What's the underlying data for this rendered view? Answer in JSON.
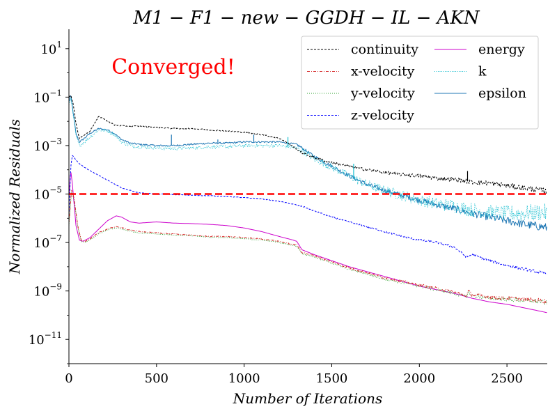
{
  "chart_data": {
    "type": "line",
    "title": "M1 − F1 − new − GGDH − IL − AKN",
    "xlabel": "Number of Iterations",
    "ylabel": "Normalized Residuals",
    "xlim": [
      0,
      2730
    ],
    "ylim_log10": [
      -12,
      1.8
    ],
    "y_scale": "log",
    "grid": false,
    "legend_position": "top-right",
    "x_ticks": [
      0,
      500,
      1000,
      1500,
      2000,
      2500
    ],
    "y_ticks": [
      {
        "exp": 1,
        "label": "10",
        "sup": "1"
      },
      {
        "exp": -1,
        "label": "10",
        "sup": "−1"
      },
      {
        "exp": -3,
        "label": "10",
        "sup": "−3"
      },
      {
        "exp": -5,
        "label": "10",
        "sup": "−5"
      },
      {
        "exp": -7,
        "label": "10",
        "sup": "−7"
      },
      {
        "exp": -9,
        "label": "10",
        "sup": "−9"
      },
      {
        "exp": -11,
        "label": "10",
        "sup": "−11"
      }
    ],
    "annotation": {
      "text": "Converged!",
      "color": "#ff0000"
    },
    "threshold": {
      "value_log10": -5,
      "color": "#ff0000"
    },
    "series": [
      {
        "name": "continuity",
        "color": "#000000",
        "dash": "3,2",
        "noise": 0.04,
        "x": [
          0,
          10,
          25,
          40,
          60,
          80,
          120,
          170,
          200,
          260,
          320,
          400,
          500,
          600,
          700,
          800,
          900,
          1000,
          1100,
          1200,
          1250,
          1300,
          1330,
          1400,
          1500,
          1600,
          1700,
          1800,
          1900,
          2000,
          2100,
          2200,
          2300,
          2400,
          2500,
          2600,
          2700,
          2730
        ],
        "y": [
          -1.0,
          -0.9,
          -1.3,
          -2.1,
          -2.7,
          -2.6,
          -2.4,
          -1.8,
          -1.9,
          -2.15,
          -2.2,
          -2.2,
          -2.25,
          -2.3,
          -2.3,
          -2.35,
          -2.4,
          -2.45,
          -2.55,
          -2.7,
          -2.9,
          -3.15,
          -3.3,
          -3.5,
          -3.7,
          -3.85,
          -4.0,
          -4.1,
          -4.2,
          -4.25,
          -4.35,
          -4.4,
          -4.5,
          -4.55,
          -4.65,
          -4.75,
          -4.85,
          -4.9
        ]
      },
      {
        "name": "x-velocity",
        "color": "#d62728",
        "dash": "4,2,1,2",
        "noise": 0.03,
        "x": [
          0,
          15,
          30,
          50,
          70,
          90,
          120,
          170,
          230,
          280,
          330,
          400,
          500,
          600,
          700,
          800,
          900,
          1000,
          1100,
          1200,
          1260,
          1300,
          1330,
          1400,
          1500,
          1600,
          1700,
          1800,
          1900,
          2000,
          2100,
          2200,
          2270,
          2280,
          2300,
          2400,
          2500,
          2600,
          2700,
          2730
        ],
        "y": [
          -6.2,
          -4.8,
          -5.2,
          -6.3,
          -6.9,
          -6.95,
          -6.85,
          -6.6,
          -6.4,
          -6.35,
          -6.45,
          -6.55,
          -6.6,
          -6.65,
          -6.7,
          -6.75,
          -6.75,
          -6.8,
          -6.85,
          -6.95,
          -7.05,
          -7.1,
          -7.4,
          -7.55,
          -7.8,
          -8.05,
          -8.25,
          -8.45,
          -8.6,
          -8.75,
          -8.9,
          -9.05,
          -9.2,
          -9.0,
          -9.15,
          -9.25,
          -9.3,
          -9.35,
          -9.4,
          -9.45
        ]
      },
      {
        "name": "y-velocity",
        "color": "#2ca02c",
        "dash": "1,2",
        "noise": 0.03,
        "x": [
          0,
          15,
          30,
          50,
          70,
          90,
          120,
          170,
          230,
          280,
          330,
          400,
          500,
          600,
          700,
          800,
          900,
          1000,
          1100,
          1200,
          1260,
          1300,
          1330,
          1400,
          1500,
          1600,
          1700,
          1800,
          1900,
          2000,
          2100,
          2200,
          2270,
          2280,
          2300,
          2400,
          2500,
          2600,
          2700,
          2730
        ],
        "y": [
          -6.3,
          -4.9,
          -5.3,
          -6.35,
          -6.95,
          -7.0,
          -6.9,
          -6.65,
          -6.45,
          -6.4,
          -6.5,
          -6.6,
          -6.65,
          -6.7,
          -6.72,
          -6.78,
          -6.8,
          -6.85,
          -6.9,
          -7.0,
          -7.1,
          -7.15,
          -7.45,
          -7.6,
          -7.85,
          -8.1,
          -8.3,
          -8.5,
          -8.65,
          -8.8,
          -8.95,
          -9.1,
          -9.25,
          -9.05,
          -9.2,
          -9.3,
          -9.35,
          -9.4,
          -9.45,
          -9.5
        ]
      },
      {
        "name": "z-velocity",
        "color": "#0000ff",
        "dash": "3,2",
        "noise": 0.02,
        "x": [
          0,
          10,
          20,
          40,
          60,
          100,
          150,
          200,
          250,
          300,
          400,
          500,
          600,
          700,
          800,
          900,
          1000,
          1100,
          1200,
          1300,
          1350,
          1400,
          1500,
          1600,
          1700,
          1800,
          1900,
          2000,
          2100,
          2200,
          2270,
          2300,
          2400,
          2500,
          2600,
          2700,
          2730
        ],
        "y": [
          -6.0,
          -3.9,
          -3.4,
          -3.6,
          -3.75,
          -3.95,
          -4.15,
          -4.35,
          -4.55,
          -4.75,
          -4.95,
          -5.0,
          -5.02,
          -5.05,
          -5.07,
          -5.1,
          -5.15,
          -5.2,
          -5.3,
          -5.45,
          -5.55,
          -5.7,
          -5.95,
          -6.15,
          -6.35,
          -6.55,
          -6.75,
          -6.9,
          -7.0,
          -7.2,
          -7.6,
          -7.5,
          -7.75,
          -7.95,
          -8.1,
          -8.25,
          -8.3
        ]
      },
      {
        "name": "energy",
        "color": "#cc00cc",
        "dash": "",
        "noise": 0.0,
        "x": [
          0,
          10,
          20,
          40,
          60,
          80,
          120,
          170,
          220,
          270,
          300,
          350,
          400,
          500,
          600,
          700,
          800,
          900,
          1000,
          1100,
          1200,
          1280,
          1300,
          1330,
          1400,
          1500,
          1600,
          1700,
          1800,
          1900,
          2000,
          2100,
          2200,
          2300,
          2400,
          2500,
          2600,
          2700,
          2730
        ],
        "y": [
          -5.2,
          -4.0,
          -4.6,
          -6.3,
          -6.9,
          -6.95,
          -6.8,
          -6.45,
          -6.1,
          -5.9,
          -5.95,
          -6.15,
          -6.2,
          -6.15,
          -6.2,
          -6.22,
          -6.25,
          -6.3,
          -6.4,
          -6.55,
          -6.75,
          -6.9,
          -6.95,
          -7.3,
          -7.5,
          -7.75,
          -8.0,
          -8.2,
          -8.4,
          -8.6,
          -8.8,
          -8.95,
          -9.1,
          -9.3,
          -9.45,
          -9.55,
          -9.7,
          -9.85,
          -9.9
        ]
      },
      {
        "name": "k",
        "color": "#17becf",
        "dash": "1,1.5",
        "noise": 0.12,
        "x": [
          0,
          10,
          20,
          40,
          60,
          80,
          120,
          170,
          220,
          260,
          300,
          350,
          400,
          500,
          600,
          700,
          800,
          900,
          1000,
          1100,
          1200,
          1300,
          1340,
          1400,
          1500,
          1600,
          1700,
          1800,
          1900,
          2000,
          2100,
          2200,
          2300,
          2400,
          2500,
          2600,
          2700,
          2730
        ],
        "y": [
          -1.3,
          -1.0,
          -1.5,
          -2.6,
          -3.0,
          -2.9,
          -2.65,
          -2.35,
          -2.4,
          -2.55,
          -2.85,
          -3.0,
          -3.05,
          -3.1,
          -3.12,
          -3.1,
          -3.05,
          -3.05,
          -3.0,
          -3.0,
          -3.0,
          -3.1,
          -3.25,
          -3.55,
          -3.9,
          -4.25,
          -4.6,
          -4.85,
          -5.05,
          -5.25,
          -5.4,
          -5.5,
          -5.65,
          -5.75,
          -5.8,
          -5.8,
          -5.75,
          -5.8
        ]
      },
      {
        "name": "epsilon",
        "color": "#1f77b4",
        "dash": "",
        "noise": 0.06,
        "x": [
          0,
          10,
          20,
          40,
          60,
          80,
          120,
          170,
          220,
          260,
          300,
          350,
          400,
          500,
          600,
          700,
          800,
          900,
          1000,
          1100,
          1200,
          1300,
          1340,
          1400,
          1500,
          1600,
          1700,
          1800,
          1900,
          2000,
          2100,
          2200,
          2300,
          2400,
          2500,
          2600,
          2700,
          2730
        ],
        "y": [
          -1.2,
          -0.9,
          -1.4,
          -2.5,
          -2.85,
          -2.75,
          -2.5,
          -2.3,
          -2.35,
          -2.5,
          -2.75,
          -2.9,
          -2.95,
          -3.0,
          -3.0,
          -2.95,
          -2.9,
          -2.9,
          -2.85,
          -2.85,
          -2.85,
          -2.95,
          -3.15,
          -3.45,
          -3.85,
          -4.25,
          -4.6,
          -4.85,
          -5.05,
          -5.25,
          -5.45,
          -5.6,
          -5.8,
          -5.95,
          -6.1,
          -6.25,
          -6.35,
          -6.4
        ]
      }
    ],
    "spikes": [
      {
        "series": "epsilon",
        "x": 585,
        "y_log10": -2.55
      },
      {
        "series": "epsilon",
        "x": 850,
        "y_log10": -2.75
      },
      {
        "series": "epsilon",
        "x": 1055,
        "y_log10": -2.55
      },
      {
        "series": "k",
        "x": 1250,
        "y_log10": -2.65
      },
      {
        "series": "k",
        "x": 1625,
        "y_log10": -3.75
      },
      {
        "series": "continuity",
        "x": 2275,
        "y_log10": -4.05
      }
    ]
  }
}
